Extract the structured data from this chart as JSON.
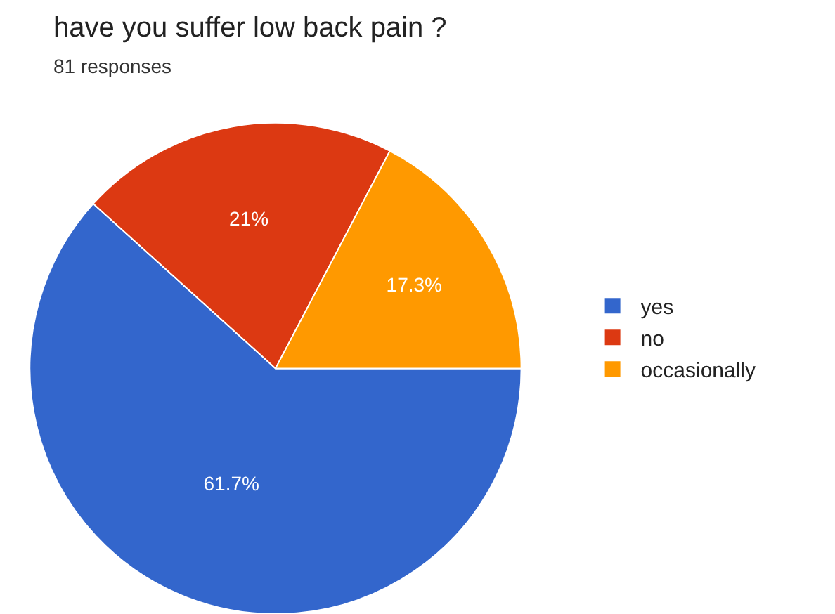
{
  "chart_data": {
    "type": "pie",
    "title": "have you suffer low back pain ?",
    "subtitle": "81 responses",
    "categories": [
      "yes",
      "no",
      "occasionally"
    ],
    "values": [
      61.7,
      21,
      17.3
    ],
    "value_labels": [
      "61.7%",
      "21%",
      "17.3%"
    ],
    "colors": [
      "#3366cc",
      "#dc3912",
      "#ff9900"
    ],
    "legend": "right"
  }
}
